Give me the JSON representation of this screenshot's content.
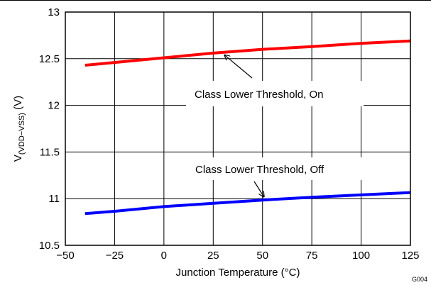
{
  "chart_data": {
    "type": "line",
    "xlabel": "Junction Temperature (°C)",
    "ylabel": {
      "main": "V",
      "subscript": "(VDD−VSS)",
      "unit": " (V)"
    },
    "xlim": [
      -50,
      125
    ],
    "ylim": [
      10.5,
      13
    ],
    "x_ticks": [
      -50,
      -25,
      0,
      25,
      50,
      75,
      100,
      125
    ],
    "x_tick_labels": [
      "−50",
      "−25",
      "0",
      "25",
      "50",
      "75",
      "100",
      "125"
    ],
    "y_ticks": [
      10.5,
      11,
      11.5,
      12,
      12.5,
      13
    ],
    "y_tick_labels": [
      "10.5",
      "11",
      "11.5",
      "12",
      "12.5",
      "13"
    ],
    "grid": true,
    "series": [
      {
        "name": "Class Lower Threshold, On",
        "color": "#ff0000",
        "x": [
          -40,
          -25,
          0,
          25,
          50,
          75,
          100,
          125
        ],
        "y": [
          12.43,
          12.46,
          12.51,
          12.56,
          12.6,
          12.63,
          12.665,
          12.69
        ]
      },
      {
        "name": "Class Lower Threshold, Off",
        "color": "#0000ff",
        "x": [
          -40,
          -25,
          0,
          25,
          50,
          75,
          100,
          125
        ],
        "y": [
          10.84,
          10.865,
          10.915,
          10.95,
          10.985,
          11.015,
          11.04,
          11.065
        ]
      }
    ],
    "annotations": [
      {
        "text": "Class Lower Threshold, On",
        "target_x": 30,
        "target_y": 12.57
      },
      {
        "text": "Class Lower Threshold, Off",
        "target_x": 50,
        "target_y": 10.99
      }
    ],
    "figure_id": "G004"
  }
}
